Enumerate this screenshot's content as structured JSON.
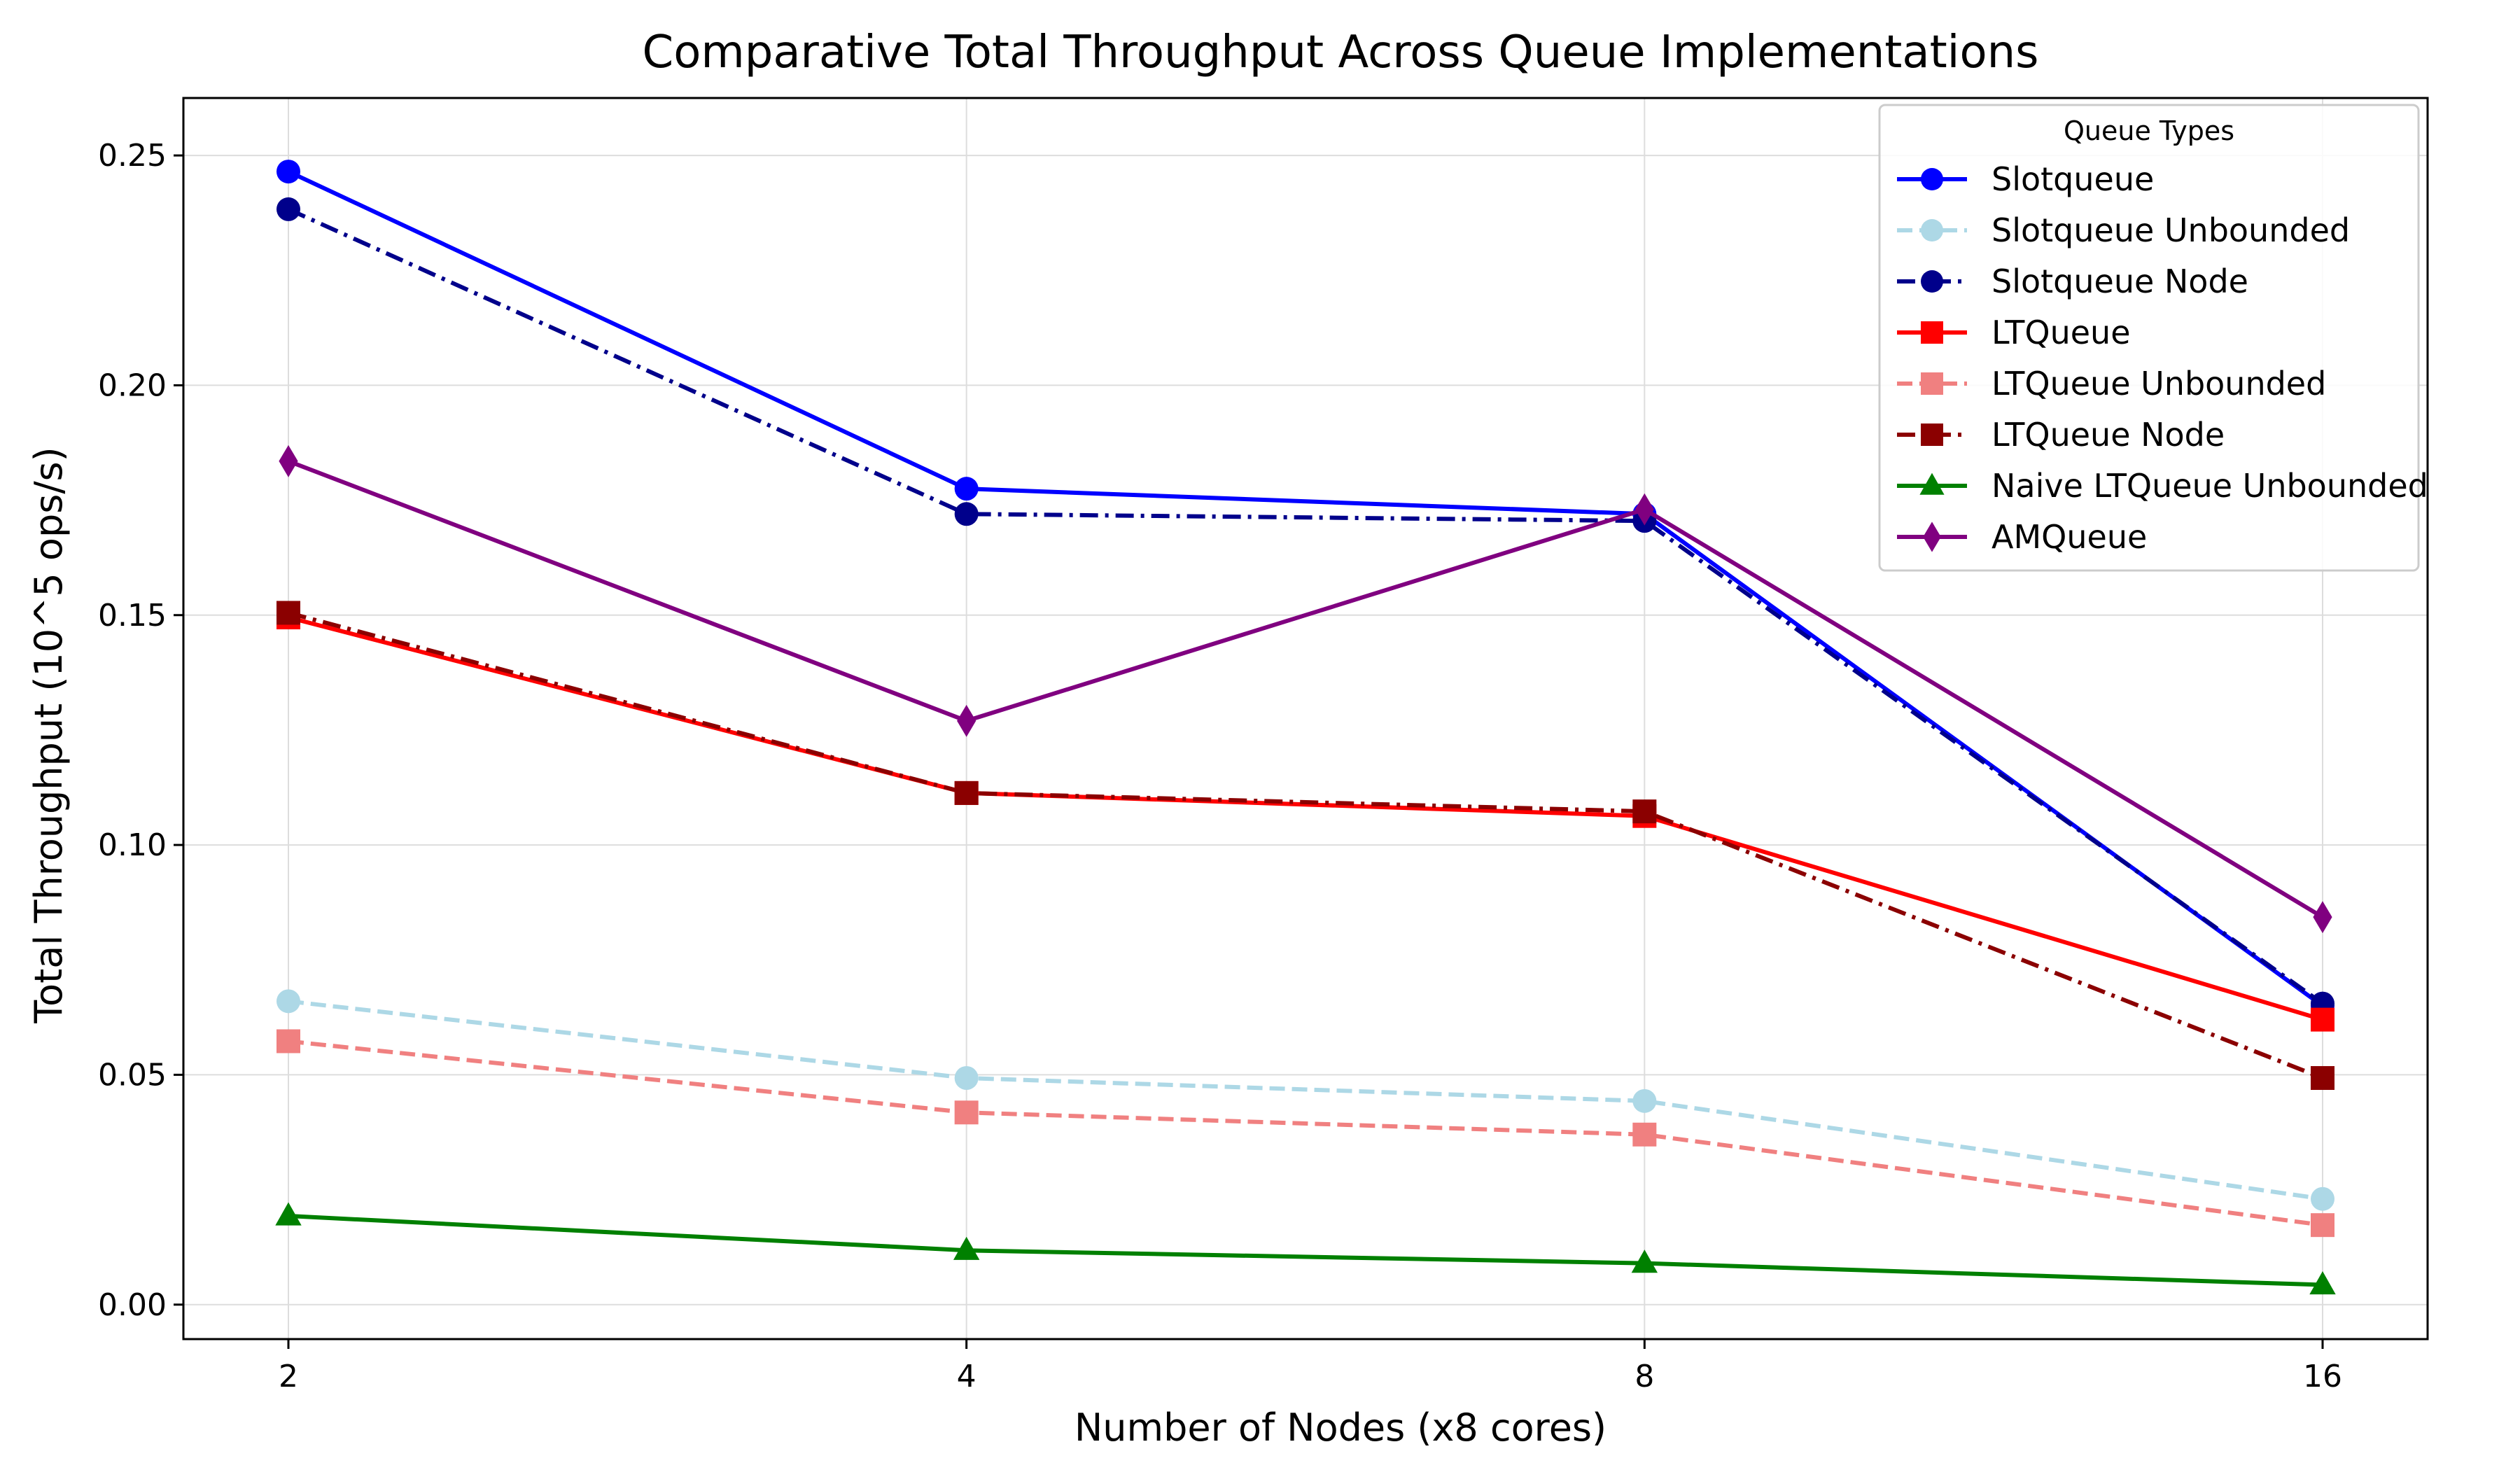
{
  "chart_data": {
    "type": "line",
    "title": "Comparative Total Throughput Across Queue Implementations",
    "xlabel": "Number of Nodes (x8 cores)",
    "ylabel": "Total Throughput (10^5 ops/s)",
    "categories": [
      "2",
      "4",
      "8",
      "16"
    ],
    "ylim": [
      -0.0075,
      0.2625
    ],
    "yticks": [
      0.0,
      0.05,
      0.1,
      0.15,
      0.2,
      0.25
    ],
    "ytick_labels": [
      "0.00",
      "0.05",
      "0.10",
      "0.15",
      "0.20",
      "0.25"
    ],
    "grid": true,
    "legend_title": "Queue Types",
    "legend_position": "top-right",
    "series": [
      {
        "name": "Slotqueue",
        "values": [
          0.2465,
          0.1775,
          0.172,
          0.065
        ],
        "color": "#0000ff",
        "dash": "solid",
        "marker": "circle"
      },
      {
        "name": "Slotqueue Unbounded",
        "values": [
          0.066,
          0.0493,
          0.0443,
          0.023
        ],
        "color": "#add8e6",
        "dash": "dashed",
        "marker": "circle"
      },
      {
        "name": "Slotqueue Node",
        "values": [
          0.2383,
          0.172,
          0.1705,
          0.0655
        ],
        "color": "#00008b",
        "dash": "dashdot",
        "marker": "circle"
      },
      {
        "name": "LTQueue",
        "values": [
          0.1495,
          0.1113,
          0.1063,
          0.062
        ],
        "color": "#ff0000",
        "dash": "solid",
        "marker": "square"
      },
      {
        "name": "LTQueue Unbounded",
        "values": [
          0.0573,
          0.0418,
          0.037,
          0.0173
        ],
        "color": "#f08080",
        "dash": "dashed",
        "marker": "square"
      },
      {
        "name": "LTQueue Node",
        "values": [
          0.1505,
          0.1113,
          0.1073,
          0.0493
        ],
        "color": "#8b0000",
        "dash": "dashdot",
        "marker": "square"
      },
      {
        "name": "Naive LTQueue Unbounded",
        "values": [
          0.0193,
          0.0118,
          0.009,
          0.0043
        ],
        "color": "#008000",
        "dash": "solid",
        "marker": "triangle"
      },
      {
        "name": "AMQueue",
        "values": [
          0.1835,
          0.127,
          0.173,
          0.0843
        ],
        "color": "#800080",
        "dash": "solid",
        "marker": "diamond"
      }
    ]
  }
}
